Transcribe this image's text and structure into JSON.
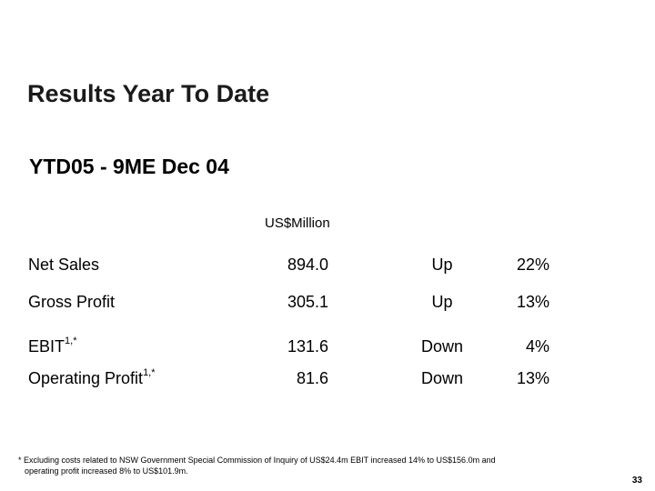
{
  "slide": {
    "title": "Results Year To Date",
    "subtitle": "YTD05 - 9ME Dec 04",
    "unit": "US$Million",
    "rows": [
      {
        "label": "Net Sales",
        "sup": "",
        "value": "894.0",
        "direction": "Up",
        "percent": "22%"
      },
      {
        "label": "Gross Profit",
        "sup": "",
        "value": "305.1",
        "direction": "Up",
        "percent": "13%"
      },
      {
        "label": "EBIT",
        "sup": "1,*",
        "value": "131.6",
        "direction": "Down",
        "percent": "4%"
      },
      {
        "label": "Operating Profit",
        "sup": "1,*",
        "value": "81.6",
        "direction": "Down",
        "percent": "13%"
      }
    ],
    "footnote_line1": "* Excluding costs related to NSW Government Special Commission of Inquiry of US$24.4m EBIT increased 14%  to US$156.0m and",
    "footnote_line2": "operating profit increased 8% to US$101.9m.",
    "page_number": "33"
  }
}
